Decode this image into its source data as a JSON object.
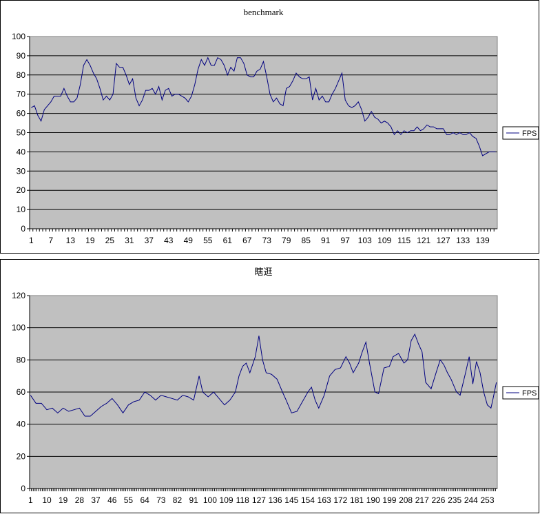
{
  "chart_data": [
    {
      "type": "line",
      "title": "benchmark",
      "ylim": [
        0,
        100
      ],
      "yticks": [
        0,
        10,
        20,
        30,
        40,
        50,
        60,
        70,
        80,
        90,
        100
      ],
      "xlim": [
        1,
        143
      ],
      "xtick_step": 6,
      "legend": "right",
      "grid": true,
      "series": [
        {
          "name": "FPS",
          "color": "#000080",
          "points": [
            [
              1,
              63
            ],
            [
              2,
              64
            ],
            [
              3,
              59
            ],
            [
              4,
              56
            ],
            [
              5,
              62
            ],
            [
              6,
              64
            ],
            [
              7,
              66
            ],
            [
              8,
              69
            ],
            [
              9,
              69
            ],
            [
              10,
              69
            ],
            [
              11,
              73
            ],
            [
              12,
              69
            ],
            [
              13,
              66
            ],
            [
              14,
              66
            ],
            [
              15,
              68
            ],
            [
              16,
              75
            ],
            [
              17,
              85
            ],
            [
              18,
              88
            ],
            [
              19,
              85
            ],
            [
              20,
              81
            ],
            [
              21,
              78
            ],
            [
              22,
              73
            ],
            [
              23,
              67
            ],
            [
              24,
              69
            ],
            [
              25,
              67
            ],
            [
              26,
              70
            ],
            [
              27,
              86
            ],
            [
              28,
              84
            ],
            [
              29,
              84
            ],
            [
              30,
              80
            ],
            [
              31,
              75
            ],
            [
              32,
              78
            ],
            [
              33,
              68
            ],
            [
              34,
              64
            ],
            [
              35,
              67
            ],
            [
              36,
              72
            ],
            [
              37,
              72
            ],
            [
              38,
              73
            ],
            [
              39,
              70
            ],
            [
              40,
              74
            ],
            [
              41,
              67
            ],
            [
              42,
              72
            ],
            [
              43,
              73
            ],
            [
              44,
              69
            ],
            [
              45,
              70
            ],
            [
              46,
              70
            ],
            [
              47,
              69
            ],
            [
              48,
              68
            ],
            [
              49,
              66
            ],
            [
              50,
              69
            ],
            [
              51,
              75
            ],
            [
              52,
              83
            ],
            [
              53,
              88
            ],
            [
              54,
              85
            ],
            [
              55,
              89
            ],
            [
              56,
              85
            ],
            [
              57,
              85
            ],
            [
              58,
              89
            ],
            [
              59,
              88
            ],
            [
              60,
              85
            ],
            [
              61,
              80
            ],
            [
              62,
              84
            ],
            [
              63,
              82
            ],
            [
              64,
              89
            ],
            [
              65,
              89
            ],
            [
              66,
              86
            ],
            [
              67,
              80
            ],
            [
              68,
              79
            ],
            [
              69,
              79
            ],
            [
              70,
              82
            ],
            [
              71,
              83
            ],
            [
              72,
              87
            ],
            [
              73,
              79
            ],
            [
              74,
              70
            ],
            [
              75,
              66
            ],
            [
              76,
              68
            ],
            [
              77,
              65
            ],
            [
              78,
              64
            ],
            [
              79,
              73
            ],
            [
              80,
              74
            ],
            [
              81,
              77
            ],
            [
              82,
              81
            ],
            [
              83,
              79
            ],
            [
              84,
              78
            ],
            [
              85,
              78
            ],
            [
              86,
              79
            ],
            [
              87,
              67
            ],
            [
              88,
              73
            ],
            [
              89,
              67
            ],
            [
              90,
              69
            ],
            [
              91,
              66
            ],
            [
              92,
              66
            ],
            [
              93,
              70
            ],
            [
              94,
              73
            ],
            [
              95,
              77
            ],
            [
              96,
              81
            ],
            [
              97,
              67
            ],
            [
              98,
              64
            ],
            [
              99,
              63
            ],
            [
              100,
              64
            ],
            [
              101,
              66
            ],
            [
              102,
              62
            ],
            [
              103,
              56
            ],
            [
              104,
              58
            ],
            [
              105,
              61
            ],
            [
              106,
              58
            ],
            [
              107,
              57
            ],
            [
              108,
              55
            ],
            [
              109,
              56
            ],
            [
              110,
              55
            ],
            [
              111,
              53
            ],
            [
              112,
              49
            ],
            [
              113,
              51
            ],
            [
              114,
              49
            ],
            [
              115,
              51
            ],
            [
              116,
              50
            ],
            [
              117,
              51
            ],
            [
              118,
              51
            ],
            [
              119,
              53
            ],
            [
              120,
              51
            ],
            [
              121,
              52
            ],
            [
              122,
              54
            ],
            [
              123,
              53
            ],
            [
              124,
              53
            ],
            [
              125,
              52
            ],
            [
              126,
              52
            ],
            [
              127,
              52
            ],
            [
              128,
              49
            ],
            [
              129,
              49
            ],
            [
              130,
              50
            ],
            [
              131,
              49
            ],
            [
              132,
              50
            ],
            [
              133,
              49
            ],
            [
              134,
              49
            ],
            [
              135,
              50
            ],
            [
              136,
              48
            ],
            [
              137,
              47
            ],
            [
              138,
              43
            ],
            [
              139,
              38
            ],
            [
              140,
              39
            ],
            [
              141,
              40
            ],
            [
              142,
              40
            ],
            [
              143,
              40
            ]
          ]
        }
      ]
    },
    {
      "type": "line",
      "title": "瞎逛",
      "ylim": [
        0,
        120
      ],
      "yticks": [
        0,
        20,
        40,
        60,
        80,
        100,
        120
      ],
      "xlim": [
        1,
        258
      ],
      "xtick_step": 9,
      "legend": "right",
      "grid": true,
      "series": [
        {
          "name": "FPS",
          "color": "#000080",
          "points": [
            [
              1,
              58
            ],
            [
              4,
              53
            ],
            [
              7,
              53
            ],
            [
              10,
              49
            ],
            [
              13,
              50
            ],
            [
              16,
              47
            ],
            [
              19,
              50
            ],
            [
              22,
              48
            ],
            [
              25,
              49
            ],
            [
              28,
              50
            ],
            [
              31,
              45
            ],
            [
              34,
              45
            ],
            [
              37,
              48
            ],
            [
              40,
              51
            ],
            [
              43,
              53
            ],
            [
              46,
              56
            ],
            [
              49,
              52
            ],
            [
              52,
              47
            ],
            [
              55,
              52
            ],
            [
              58,
              54
            ],
            [
              61,
              55
            ],
            [
              64,
              60
            ],
            [
              67,
              58
            ],
            [
              70,
              55
            ],
            [
              73,
              58
            ],
            [
              76,
              57
            ],
            [
              79,
              56
            ],
            [
              82,
              55
            ],
            [
              85,
              58
            ],
            [
              88,
              57
            ],
            [
              91,
              55
            ],
            [
              94,
              70
            ],
            [
              96,
              60
            ],
            [
              99,
              57
            ],
            [
              102,
              60
            ],
            [
              105,
              56
            ],
            [
              108,
              52
            ],
            [
              111,
              55
            ],
            [
              114,
              60
            ],
            [
              116,
              70
            ],
            [
              118,
              76
            ],
            [
              120,
              78
            ],
            [
              122,
              72
            ],
            [
              125,
              82
            ],
            [
              127,
              95
            ],
            [
              129,
              80
            ],
            [
              131,
              72
            ],
            [
              134,
              71
            ],
            [
              137,
              68
            ],
            [
              140,
              60
            ],
            [
              142,
              55
            ],
            [
              145,
              47
            ],
            [
              148,
              48
            ],
            [
              151,
              54
            ],
            [
              154,
              60
            ],
            [
              156,
              63
            ],
            [
              158,
              55
            ],
            [
              160,
              50
            ],
            [
              163,
              58
            ],
            [
              166,
              70
            ],
            [
              169,
              74
            ],
            [
              172,
              75
            ],
            [
              175,
              82
            ],
            [
              177,
              78
            ],
            [
              179,
              72
            ],
            [
              182,
              78
            ],
            [
              184,
              85
            ],
            [
              186,
              91
            ],
            [
              188,
              78
            ],
            [
              191,
              60
            ],
            [
              193,
              59
            ],
            [
              196,
              75
            ],
            [
              199,
              76
            ],
            [
              201,
              82
            ],
            [
              204,
              84
            ],
            [
              207,
              78
            ],
            [
              209,
              80
            ],
            [
              211,
              92
            ],
            [
              213,
              96
            ],
            [
              215,
              90
            ],
            [
              217,
              85
            ],
            [
              219,
              66
            ],
            [
              222,
              62
            ],
            [
              225,
              73
            ],
            [
              227,
              80
            ],
            [
              229,
              77
            ],
            [
              231,
              72
            ],
            [
              233,
              68
            ],
            [
              236,
              60
            ],
            [
              238,
              58
            ],
            [
              241,
              72
            ],
            [
              243,
              82
            ],
            [
              245,
              65
            ],
            [
              247,
              79
            ],
            [
              249,
              72
            ],
            [
              251,
              60
            ],
            [
              253,
              52
            ],
            [
              255,
              50
            ],
            [
              256,
              55
            ],
            [
              258,
              66
            ]
          ]
        }
      ]
    }
  ]
}
